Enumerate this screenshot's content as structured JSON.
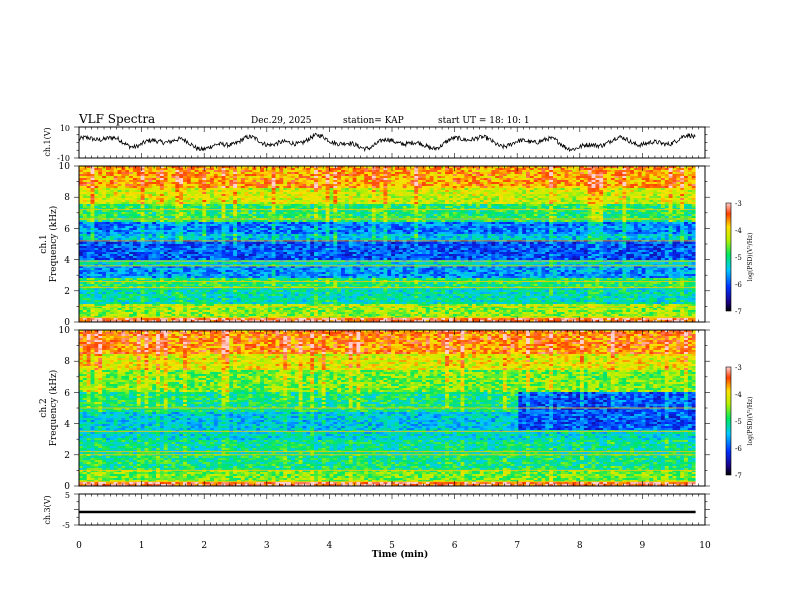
{
  "header": {
    "title": "VLF Spectra",
    "date": "Dec.29, 2025",
    "station": "station= KAP",
    "start": "start  UT  =    18: 10: 1"
  },
  "chart_data": [
    {
      "type": "line",
      "name": "ch1-waveform",
      "ylabel": "ch.1(V)",
      "ylim": [
        -10,
        10
      ],
      "ytick_labels": [
        "10",
        "-10"
      ],
      "xlim": [
        0,
        10
      ],
      "data_end_min": 9.85,
      "description_values": {
        "mean": 0,
        "amplitude": 6
      }
    },
    {
      "type": "heatmap",
      "name": "ch1-spectrogram",
      "ylabel": "ch.1\nFrequency (kHz)",
      "ylabel_lines": [
        "ch.1",
        "Frequency (kHz)"
      ],
      "ylim": [
        0,
        10
      ],
      "ytick_labels": [
        "0",
        "2",
        "4",
        "6",
        "8",
        "10"
      ],
      "xlim": [
        0,
        10
      ],
      "data_end_min": 9.85,
      "colorbar": {
        "label": "log(PSD)(V²/Hz)",
        "range": [
          -7,
          -3
        ],
        "tick_labels": [
          "-3",
          "-4",
          "-5",
          "-6",
          "-7"
        ]
      },
      "bands_khz_level": [
        [
          0.0,
          0.3,
          -3.3
        ],
        [
          0.3,
          1.2,
          -4.5
        ],
        [
          1.2,
          2.2,
          -5.2
        ],
        [
          2.2,
          2.8,
          -4.9
        ],
        [
          2.8,
          3.6,
          -5.7
        ],
        [
          3.6,
          4.0,
          -5.3
        ],
        [
          4.0,
          5.2,
          -6.0
        ],
        [
          5.2,
          5.6,
          -5.4
        ],
        [
          5.6,
          6.4,
          -5.8
        ],
        [
          6.4,
          7.6,
          -4.9
        ],
        [
          7.6,
          8.6,
          -4.2
        ],
        [
          8.6,
          10.0,
          -3.7
        ]
      ],
      "lines_khz": [
        0.3,
        1.0,
        2.2,
        2.6,
        3.6,
        3.9,
        5.2,
        6.6,
        7.2
      ]
    },
    {
      "type": "heatmap",
      "name": "ch2-spectrogram",
      "ylabel": "ch.2\nFrequency (kHz)",
      "ylabel_lines": [
        "ch.2",
        "Frequency (kHz)"
      ],
      "ylim": [
        0,
        10
      ],
      "ytick_labels": [
        "0",
        "2",
        "4",
        "6",
        "8",
        "10"
      ],
      "xlim": [
        0,
        10
      ],
      "data_end_min": 9.85,
      "colorbar": {
        "label": "log(PSD)(V²/Hz)",
        "range": [
          -7,
          -3
        ],
        "tick_labels": [
          "-3",
          "-4",
          "-5",
          "-6",
          "-7"
        ]
      },
      "bands_khz_level": [
        [
          0.0,
          0.3,
          -3.3
        ],
        [
          0.3,
          1.0,
          -4.6
        ],
        [
          1.0,
          2.0,
          -5.0
        ],
        [
          2.0,
          3.0,
          -5.1
        ],
        [
          3.0,
          3.6,
          -5.3
        ],
        [
          3.6,
          4.8,
          -5.4
        ],
        [
          4.8,
          6.0,
          -5.0
        ],
        [
          6.0,
          7.5,
          -4.6
        ],
        [
          7.5,
          8.5,
          -4.1
        ],
        [
          8.5,
          10.0,
          -3.6
        ]
      ],
      "event_min": 7.0,
      "after_event_band_khz_level": [
        3.6,
        6.0,
        -6.0
      ],
      "lines_khz": [
        0.3,
        1.0,
        2.0,
        2.2,
        3.5,
        5.0
      ]
    },
    {
      "type": "line",
      "name": "ch3-waveform",
      "ylabel": "ch.3(V)",
      "ylim": [
        -5,
        5
      ],
      "ytick_labels": [
        "5",
        "-5"
      ],
      "xlim": [
        0,
        10
      ],
      "data_end_min": 9.85,
      "level": -0.8,
      "xlabel": "Time  (min)",
      "xtick_labels": [
        "0",
        "1",
        "2",
        "3",
        "4",
        "5",
        "6",
        "7",
        "8",
        "9",
        "10"
      ]
    }
  ]
}
